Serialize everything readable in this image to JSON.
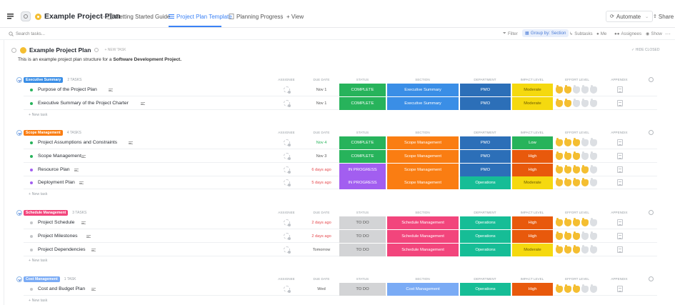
{
  "header": {
    "project_title": "Example Project Plan",
    "tabs": [
      {
        "label": "Getting Started Guide"
      },
      {
        "label": "Project Plan Template"
      },
      {
        "label": "Planning Progress"
      }
    ],
    "add_view": "+ View",
    "automate": "Automate",
    "share": "Share"
  },
  "toolbar": {
    "search_placeholder": "Search tasks...",
    "filter": "Filter",
    "group_by": "Group by: Section",
    "subtasks": "Subtasks",
    "me": "Me",
    "assignees": "Assignees",
    "show": "Show"
  },
  "list": {
    "title": "Example Project Plan",
    "new_task": "+ NEW TASK",
    "hide_closed": "HIDE CLOSED",
    "description_prefix": "This is an example project plan structure for a ",
    "description_bold": "Software Development Project."
  },
  "columns": {
    "assignee": "ASSIGNEE",
    "due_date": "DUE DATE",
    "status": "STATUS",
    "section": "SECTION",
    "department": "DEPARTMENT",
    "impact": "IMPACT LEVEL",
    "effort": "EFFORT LEVEL",
    "appendix": "APPENDIX"
  },
  "new_task_label": "+ New task",
  "colors": {
    "complete": "#27b35b",
    "in_progress": "#a25ef0",
    "todo": "#d3d4d6",
    "exec_summary": "#3a8ee6",
    "scope_mgmt": "#fa7d12",
    "schedule_mgmt": "#f2457c",
    "cost_mgmt": "#7aabf5",
    "pmo": "#2c6fb8",
    "operations": "#16bd96",
    "moderate": "#f5d90f",
    "low": "#27b35b",
    "high": "#e8590c"
  },
  "sections": [
    {
      "name": "Executive Summary",
      "count": "2 TASKS",
      "color": "#3a8ee6",
      "tasks": [
        {
          "name": "Purpose of the Project Plan",
          "dot": "#27b35b",
          "due": "Nov 1",
          "due_color": "#555",
          "status": "COMPLETE",
          "status_color": "#27b35b",
          "status_text": "#fff",
          "section": "Executive Summary",
          "section_color": "#3a8ee6",
          "department": "PMO",
          "dept_color": "#2c6fb8",
          "impact": "Moderate",
          "impact_color": "#f5d90f",
          "impact_text": "#6b5a00",
          "effort": 2
        },
        {
          "name": "Executive Summary of the Project Charter",
          "dot": "#27b35b",
          "due": "Nov 1",
          "due_color": "#555",
          "status": "COMPLETE",
          "status_color": "#27b35b",
          "status_text": "#fff",
          "section": "Executive Summary",
          "section_color": "#3a8ee6",
          "department": "PMO",
          "dept_color": "#2c6fb8",
          "impact": "Moderate",
          "impact_color": "#f5d90f",
          "impact_text": "#6b5a00",
          "effort": 2
        }
      ]
    },
    {
      "name": "Scope Management",
      "count": "4 TASKS",
      "color": "#fa7d12",
      "tasks": [
        {
          "name": "Project Assumptions and Constraints",
          "dot": "#27b35b",
          "due": "Nov 4",
          "due_color": "#27b35b",
          "status": "COMPLETE",
          "status_color": "#27b35b",
          "status_text": "#fff",
          "section": "Scope Management",
          "section_color": "#fa7d12",
          "department": "PMO",
          "dept_color": "#2c6fb8",
          "impact": "Low",
          "impact_color": "#27b35b",
          "impact_text": "#fff",
          "effort": 3
        },
        {
          "name": "Scope Management",
          "dot": "#27b35b",
          "due": "Nov 3",
          "due_color": "#555",
          "status": "COMPLETE",
          "status_color": "#27b35b",
          "status_text": "#fff",
          "section": "Scope Management",
          "section_color": "#fa7d12",
          "department": "PMO",
          "dept_color": "#2c6fb8",
          "impact": "High",
          "impact_color": "#e8590c",
          "impact_text": "#fff",
          "effort": 3
        },
        {
          "name": "Resource Plan",
          "dot": "#a25ef0",
          "due": "6 days ago",
          "due_color": "#e5484d",
          "status": "IN PROGRESS",
          "status_color": "#a25ef0",
          "status_text": "#fff",
          "section": "Scope Management",
          "section_color": "#fa7d12",
          "department": "PMO",
          "dept_color": "#2c6fb8",
          "impact": "High",
          "impact_color": "#e8590c",
          "impact_text": "#fff",
          "effort": 4
        },
        {
          "name": "Deployment Plan",
          "dot": "#a25ef0",
          "due": "5 days ago",
          "due_color": "#e5484d",
          "status": "IN PROGRESS",
          "status_color": "#a25ef0",
          "status_text": "#fff",
          "section": "Scope Management",
          "section_color": "#fa7d12",
          "department": "Operations",
          "dept_color": "#16bd96",
          "impact": "Moderate",
          "impact_color": "#f5d90f",
          "impact_text": "#6b5a00",
          "effort": 4
        }
      ]
    },
    {
      "name": "Schedule Management",
      "count": "3 TASKS",
      "color": "#f2457c",
      "tasks": [
        {
          "name": "Project Schedule",
          "dot": "#c4c6c9",
          "due": "2 days ago",
          "due_color": "#e5484d",
          "status": "TO DO",
          "status_color": "#d3d4d6",
          "status_text": "#555",
          "section": "Schedule Management",
          "section_color": "#f2457c",
          "department": "Operations",
          "dept_color": "#16bd96",
          "impact": "High",
          "impact_color": "#e8590c",
          "impact_text": "#fff",
          "effort": 4
        },
        {
          "name": "Project Milestones",
          "dot": "#c4c6c9",
          "due": "2 days ago",
          "due_color": "#e5484d",
          "status": "TO DO",
          "status_color": "#d3d4d6",
          "status_text": "#555",
          "section": "Schedule Management",
          "section_color": "#f2457c",
          "department": "Operations",
          "dept_color": "#16bd96",
          "impact": "High",
          "impact_color": "#e8590c",
          "impact_text": "#fff",
          "effort": 3
        },
        {
          "name": "Project Dependencies",
          "dot": "#c4c6c9",
          "due": "Tomorrow",
          "due_color": "#555",
          "status": "TO DO",
          "status_color": "#d3d4d6",
          "status_text": "#555",
          "section": "Schedule Management",
          "section_color": "#f2457c",
          "department": "Operations",
          "dept_color": "#16bd96",
          "impact": "Moderate",
          "impact_color": "#f5d90f",
          "impact_text": "#6b5a00",
          "effort": 3
        }
      ]
    },
    {
      "name": "Cost Management",
      "count": "1 TASK",
      "color": "#7aabf5",
      "tasks": [
        {
          "name": "Cost and Budget Plan",
          "dot": "#c4c6c9",
          "due": "Wed",
          "due_color": "#555",
          "status": "TO DO",
          "status_color": "#d3d4d6",
          "status_text": "#555",
          "section": "Cost Management",
          "section_color": "#7aabf5",
          "department": "Operations",
          "dept_color": "#16bd96",
          "impact": "High",
          "impact_color": "#e8590c",
          "impact_text": "#fff",
          "effort": 3
        }
      ]
    }
  ]
}
